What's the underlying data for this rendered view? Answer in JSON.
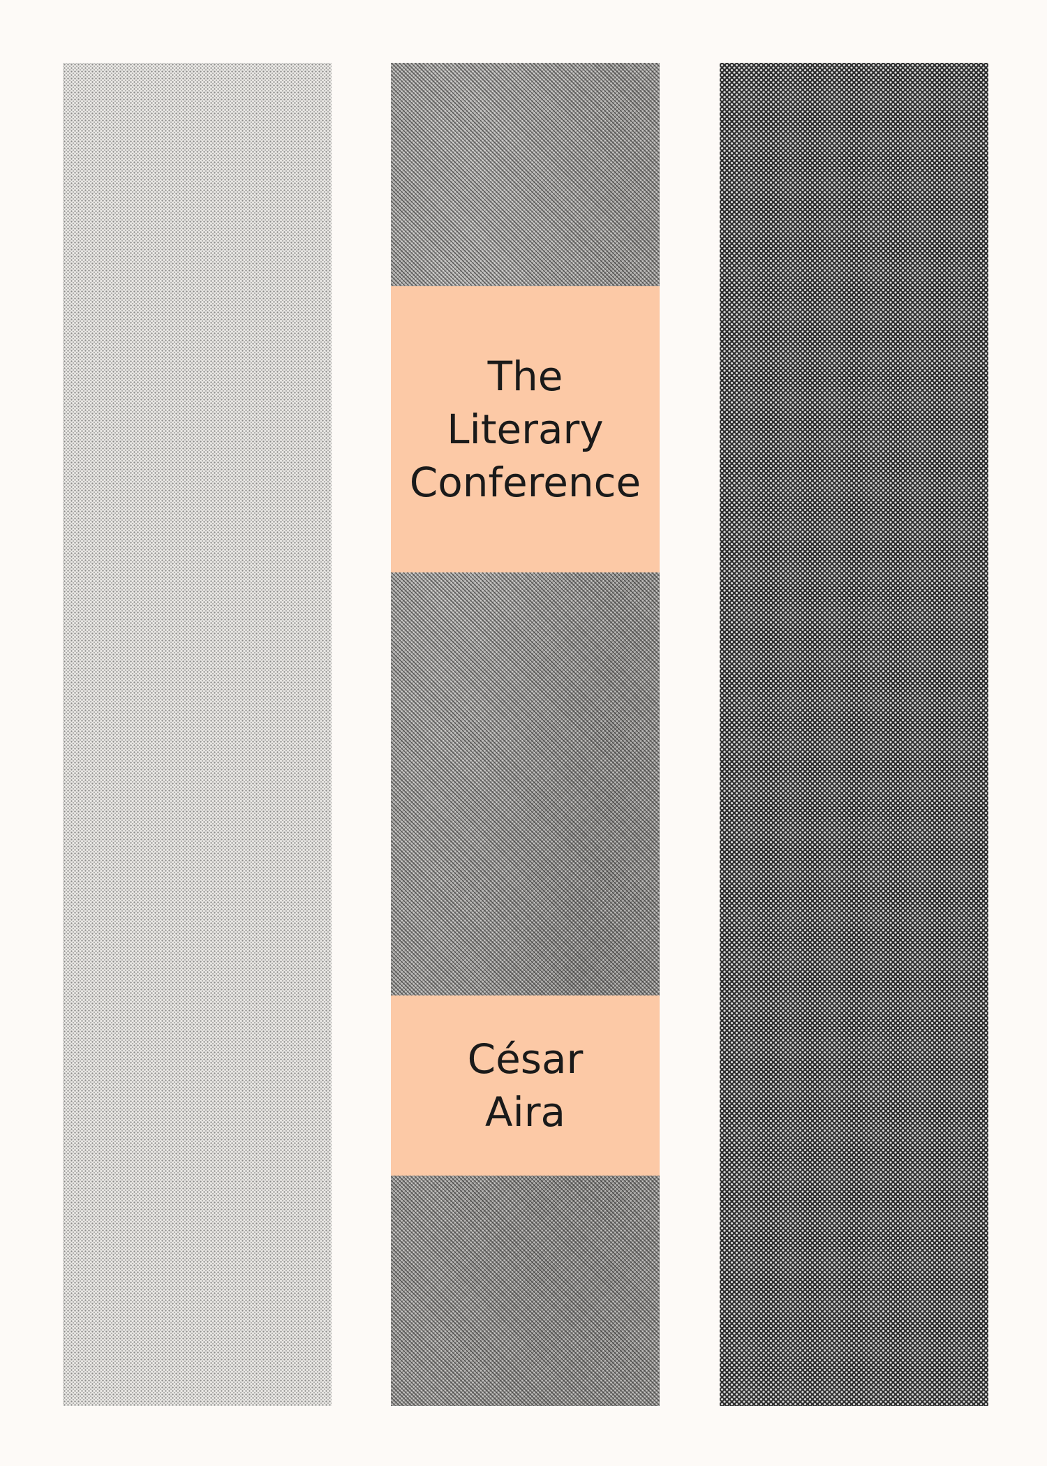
{
  "book": {
    "title_lines": [
      "The",
      "Literary",
      "Conference"
    ],
    "author_lines": [
      "César",
      "Aira"
    ]
  },
  "colors": {
    "background": "#fdfaf7",
    "label_fill": "#fcc9a6",
    "text": "#1a1a1a"
  }
}
